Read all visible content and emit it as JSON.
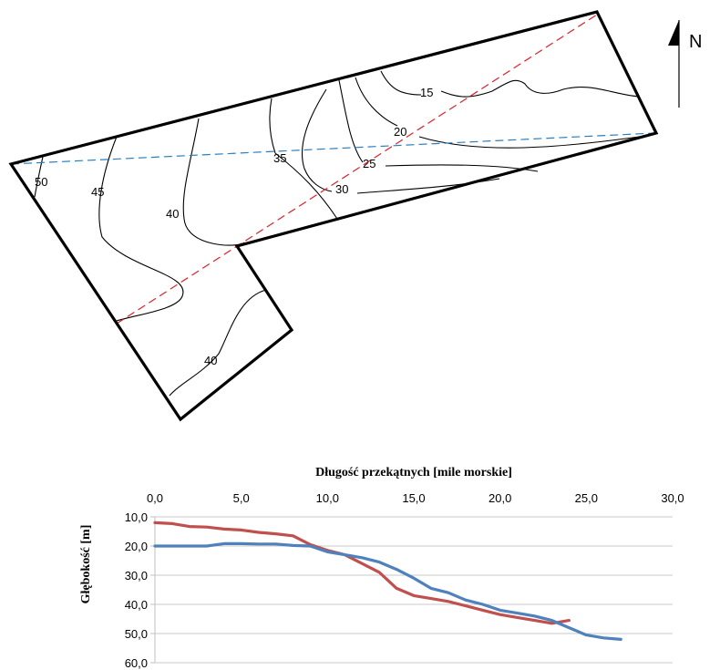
{
  "map": {
    "north_label": "N",
    "contour_labels": [
      "15",
      "20",
      "25",
      "30",
      "35",
      "40",
      "45",
      "50",
      "40"
    ],
    "colors": {
      "outline": "#000000",
      "contour": "#000000",
      "diagonal_red": "#e0202a",
      "diagonal_blue": "#2a7fc0"
    }
  },
  "chart_data": {
    "type": "line",
    "title": "Długość przekątnych [mile morskie]",
    "xlabel": "Długość przekątnych [mile morskie]",
    "ylabel": "Głębokość [m]",
    "xlim": [
      0,
      30
    ],
    "ylim": [
      10,
      60
    ],
    "y_inverted": true,
    "x_axis_position": "top",
    "grid": "horizontal",
    "x_ticks": [
      "0,0",
      "5,0",
      "10,0",
      "15,0",
      "20,0",
      "25,0",
      "30,0"
    ],
    "y_ticks": [
      "10,0",
      "20,0",
      "30,0",
      "40,0",
      "50,0",
      "60,0"
    ],
    "series": [
      {
        "color": "#c0504d",
        "x": [
          0,
          1,
          2,
          3,
          4,
          5,
          6,
          7,
          8,
          9,
          10,
          11,
          12,
          13,
          14,
          15,
          16,
          17,
          18,
          19,
          20,
          21,
          22,
          23,
          24
        ],
        "y": [
          12.0,
          12.3,
          13.3,
          13.5,
          14.2,
          14.5,
          15.3,
          15.8,
          16.5,
          19.5,
          21.5,
          23.0,
          26.0,
          29.0,
          34.5,
          37.0,
          38.0,
          39.0,
          40.5,
          42.0,
          43.5,
          44.5,
          45.5,
          46.5,
          45.5
        ]
      },
      {
        "color": "#4f81bd",
        "x": [
          0,
          1,
          2,
          3,
          4,
          5,
          6,
          7,
          8,
          9,
          10,
          11,
          12,
          13,
          14,
          15,
          16,
          17,
          18,
          19,
          20,
          21,
          22,
          23,
          24,
          25,
          26,
          27
        ],
        "y": [
          20.0,
          20.0,
          20.0,
          20.0,
          19.2,
          19.2,
          19.3,
          19.3,
          19.8,
          20.0,
          22.0,
          23.0,
          24.0,
          25.5,
          28.0,
          31.0,
          34.5,
          36.0,
          38.5,
          40.0,
          42.0,
          43.0,
          44.0,
          45.5,
          48.0,
          50.5,
          51.5,
          52.0
        ]
      }
    ]
  }
}
